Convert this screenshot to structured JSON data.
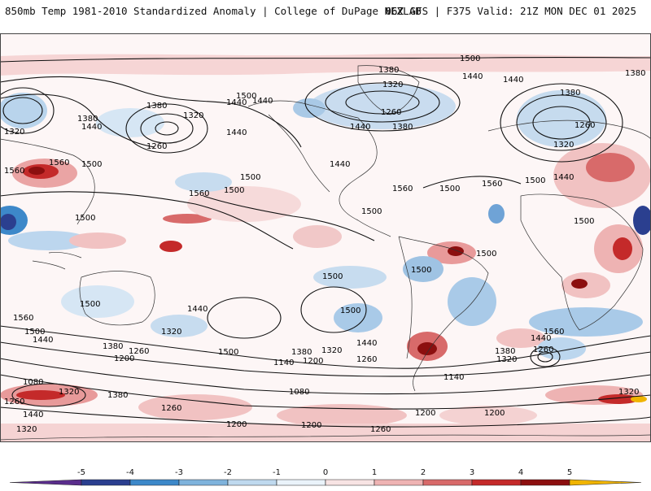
{
  "header": {
    "title_left": "850mb Temp 1981-2010 Standardized Anomaly | College of DuPage NEXLAB",
    "title_right": "06Z GFS | F375 Valid: 21Z MON DEC 01 2025"
  },
  "map": {
    "product": "850mb temperature standardized anomaly with geopotential height contours",
    "contour_labels": [
      "1500",
      "1380",
      "1320",
      "1440",
      "1260",
      "1560",
      "1200",
      "1140",
      "1080"
    ]
  },
  "colorbar": {
    "ticks": [
      "-5",
      "-4",
      "-3",
      "-2",
      "-1",
      "0",
      "1",
      "2",
      "3",
      "4",
      "5"
    ],
    "colors": [
      "#5a2d8c",
      "#2b3f8f",
      "#3d88c9",
      "#7fb3dc",
      "#bfd9ee",
      "#eaf3fa",
      "#f7e3e3",
      "#eeb3b3",
      "#d86a6a",
      "#c42a2a",
      "#8c0f0f",
      "#f0b400"
    ]
  }
}
